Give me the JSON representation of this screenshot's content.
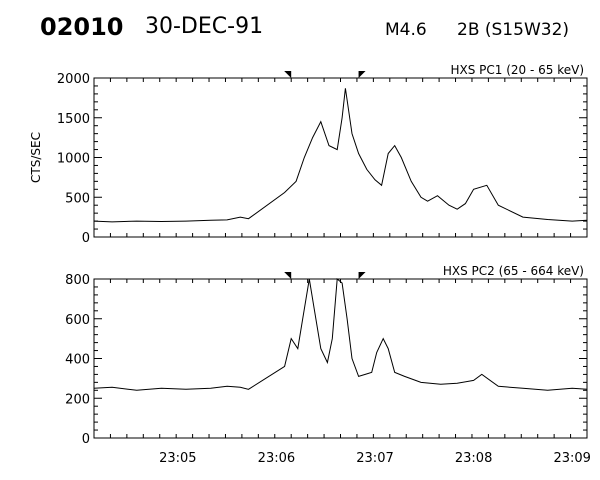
{
  "header": {
    "event_id": "02010",
    "date": "30-DEC-91",
    "flare_class": "M4.6",
    "flare_info": "2B (S15W32)"
  },
  "chart_data": [
    {
      "type": "line",
      "title": "HXS PC1 (20 - 65 keV)",
      "ylabel": "CTS/SEC",
      "xlabel": "",
      "ylim": [
        0,
        2000
      ],
      "yticks": [
        0,
        500,
        1000,
        1500,
        2000
      ],
      "xlim": [
        "23:04:09",
        "23:09:09"
      ],
      "xticks": [
        "23:05",
        "23:06",
        "23:07",
        "23:08",
        "23:09"
      ],
      "markers": [
        "23:06:09",
        "23:06:50"
      ],
      "series": [
        {
          "x": [
            "23:04:09",
            "23:04:20",
            "23:04:35",
            "23:04:50",
            "23:05:05",
            "23:05:20",
            "23:05:30",
            "23:05:38",
            "23:05:43",
            "23:06:05",
            "23:06:12",
            "23:06:17",
            "23:06:22",
            "23:06:27",
            "23:06:32",
            "23:06:37",
            "23:06:40",
            "23:06:42",
            "23:06:46",
            "23:06:50",
            "23:06:55",
            "23:07:00",
            "23:07:04",
            "23:07:08",
            "23:07:12",
            "23:07:16",
            "23:07:22",
            "23:07:28",
            "23:07:32",
            "23:07:38",
            "23:07:45",
            "23:07:50",
            "23:07:55",
            "23:08:00",
            "23:08:08",
            "23:08:15",
            "23:08:30",
            "23:08:45",
            "23:09:00",
            "23:09:09"
          ],
          "y": [
            200,
            190,
            200,
            195,
            200,
            210,
            215,
            250,
            230,
            560,
            700,
            1000,
            1250,
            1450,
            1150,
            1100,
            1500,
            1870,
            1300,
            1050,
            850,
            720,
            650,
            1050,
            1150,
            1000,
            700,
            500,
            450,
            520,
            400,
            350,
            420,
            600,
            650,
            400,
            250,
            220,
            200,
            210
          ]
        }
      ]
    },
    {
      "type": "line",
      "title": "HXS PC2 (65 - 664 keV)",
      "ylabel": "",
      "xlabel": "",
      "ylim": [
        0,
        800
      ],
      "yticks": [
        0,
        200,
        400,
        600,
        800
      ],
      "xlim": [
        "23:04:09",
        "23:09:09"
      ],
      "xticks": [
        "23:05",
        "23:06",
        "23:07",
        "23:08",
        "23:09"
      ],
      "markers": [
        "23:06:09",
        "23:06:50"
      ],
      "series": [
        {
          "x": [
            "23:04:09",
            "23:04:20",
            "23:04:35",
            "23:04:50",
            "23:05:05",
            "23:05:20",
            "23:05:30",
            "23:05:38",
            "23:05:43",
            "23:06:05",
            "23:06:09",
            "23:06:13",
            "23:06:16",
            "23:06:20",
            "23:06:23",
            "23:06:27",
            "23:06:31",
            "23:06:34",
            "23:06:37",
            "23:06:40",
            "23:06:43",
            "23:06:46",
            "23:06:50",
            "23:06:54",
            "23:06:58",
            "23:07:01",
            "23:07:05",
            "23:07:08",
            "23:07:12",
            "23:07:18",
            "23:07:28",
            "23:07:40",
            "23:07:50",
            "23:08:00",
            "23:08:05",
            "23:08:15",
            "23:08:30",
            "23:08:45",
            "23:09:00",
            "23:09:09"
          ],
          "y": [
            250,
            255,
            240,
            250,
            245,
            250,
            260,
            255,
            245,
            360,
            500,
            450,
            600,
            800,
            650,
            450,
            380,
            500,
            800,
            780,
            600,
            400,
            310,
            320,
            330,
            430,
            500,
            450,
            330,
            310,
            280,
            270,
            275,
            290,
            320,
            260,
            250,
            240,
            250,
            245
          ]
        }
      ]
    }
  ]
}
